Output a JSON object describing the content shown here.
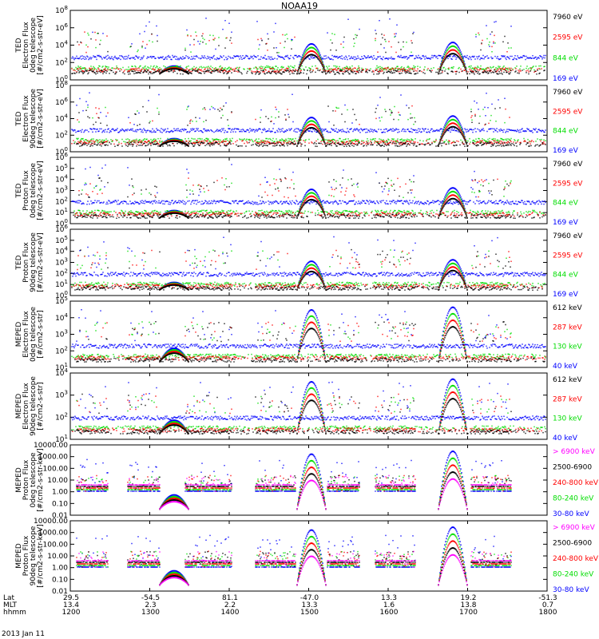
{
  "title": "NOAA19",
  "date_label": "2013 Jan 11",
  "colors": {
    "black": "#000000",
    "red": "#ff0000",
    "green": "#00dd00",
    "blue": "#0000ff",
    "magenta": "#ff00ff"
  },
  "footer": {
    "rows": [
      {
        "label": "Lat",
        "values": [
          "29.5",
          "-54.5",
          "81.1",
          "-47.0",
          "13.3",
          "19.2",
          "-51.3"
        ]
      },
      {
        "label": "MLT",
        "values": [
          "13.4",
          "2.3",
          "2.2",
          "13.3",
          "1.6",
          "13.8",
          "0.7"
        ]
      },
      {
        "label": "hhmm",
        "values": [
          "1200",
          "1300",
          "1400",
          "1500",
          "1600",
          "1700",
          "1800"
        ]
      }
    ]
  },
  "chart_data": [
    {
      "type": "line",
      "instrument": "TED",
      "ylabel": [
        "TED",
        "Electron Flux",
        "0deg telescope",
        "[#/cm2-s-str-eV]"
      ],
      "ylog": true,
      "yticks": [
        "10^0",
        "10^2",
        "10^4",
        "10^6",
        "10^8"
      ],
      "legend": [
        {
          "text": "7960 eV",
          "color": "black"
        },
        {
          "text": "2595 eV",
          "color": "red"
        },
        {
          "text": "844 eV",
          "color": "green"
        },
        {
          "text": "169 eV",
          "color": "blue"
        }
      ]
    },
    {
      "type": "line",
      "instrument": "TED",
      "ylabel": [
        "TED",
        "Electron Flux",
        "90deg telescope",
        "[#/cm2-s-str-eV]"
      ],
      "ylog": true,
      "yticks": [
        "10^0",
        "10^2",
        "10^4",
        "10^6",
        "10^8"
      ],
      "legend": [
        {
          "text": "7960 eV",
          "color": "black"
        },
        {
          "text": "2595 eV",
          "color": "red"
        },
        {
          "text": "844 eV",
          "color": "green"
        },
        {
          "text": "169 eV",
          "color": "blue"
        }
      ]
    },
    {
      "type": "line",
      "instrument": "TED",
      "ylabel": [
        "TED",
        "Proton Flux",
        "0deg telescope",
        "[#/cm2-s-str-eV]"
      ],
      "ylog": true,
      "yticks": [
        "10^0",
        "10^1",
        "10^2",
        "10^3",
        "10^4",
        "10^5",
        "10^6"
      ],
      "legend": [
        {
          "text": "7960 eV",
          "color": "black"
        },
        {
          "text": "2595 eV",
          "color": "red"
        },
        {
          "text": "844 eV",
          "color": "green"
        },
        {
          "text": "169 eV",
          "color": "blue"
        }
      ]
    },
    {
      "type": "line",
      "instrument": "TED",
      "ylabel": [
        "TED",
        "Proton Flux",
        "90deg telescope",
        "[#/cm2-s-str-eV]"
      ],
      "ylog": true,
      "yticks": [
        "10^0",
        "10^1",
        "10^2",
        "10^3",
        "10^4",
        "10^5",
        "10^6"
      ],
      "legend": [
        {
          "text": "7960 eV",
          "color": "black"
        },
        {
          "text": "2595 eV",
          "color": "red"
        },
        {
          "text": "844 eV",
          "color": "green"
        },
        {
          "text": "169 eV",
          "color": "blue"
        }
      ]
    },
    {
      "type": "line",
      "instrument": "MEPED",
      "ylabel": [
        "MEPED",
        "Electron Flux",
        "0deg telescope",
        "[#/cm2-s-str]"
      ],
      "ylog": true,
      "yticks": [
        "10^1",
        "10^2",
        "10^3",
        "10^4",
        "10^5"
      ],
      "legend": [
        {
          "text": "612 keV",
          "color": "black"
        },
        {
          "text": "287 keV",
          "color": "red"
        },
        {
          "text": "130 keV",
          "color": "green"
        },
        {
          "text": "40 keV",
          "color": "blue"
        }
      ]
    },
    {
      "type": "line",
      "instrument": "MEPED",
      "ylabel": [
        "MEPED",
        "Electron Flux",
        "90deg telescope",
        "[#/cm2-s-str]"
      ],
      "ylog": true,
      "yticks": [
        "10^1",
        "10^2",
        "10^3",
        "10^4"
      ],
      "legend": [
        {
          "text": "612 keV",
          "color": "black"
        },
        {
          "text": "287 keV",
          "color": "red"
        },
        {
          "text": "130 keV",
          "color": "green"
        },
        {
          "text": "40 keV",
          "color": "blue"
        }
      ]
    },
    {
      "type": "line",
      "instrument": "MEPED",
      "ylabel": [
        "MEPED",
        "Proton Flux",
        "0deg telescope",
        "[#/cm2-s-str-keV]"
      ],
      "ylog": true,
      "yticks": [
        "0.01",
        "0.10",
        "1.00",
        "10.00",
        "100.00",
        "1000.00",
        "10000.00"
      ],
      "legend": [
        {
          "text": "> 6900 keV",
          "color": "magenta"
        },
        {
          "text": "2500-6900",
          "color": "black"
        },
        {
          "text": "240-800 keV",
          "color": "red"
        },
        {
          "text": "80-240 keV",
          "color": "green"
        },
        {
          "text": "30-80 keV",
          "color": "blue"
        }
      ]
    },
    {
      "type": "line",
      "instrument": "MEPED",
      "ylabel": [
        "MEPED",
        "Proton Flux",
        "90deg telescope",
        "[#/cm2-s-str-keV]"
      ],
      "ylog": true,
      "yticks": [
        "0.01",
        "0.10",
        "1.00",
        "10.00",
        "100.00",
        "1000.00",
        "10000.00"
      ],
      "legend": [
        {
          "text": "> 6900 keV",
          "color": "magenta"
        },
        {
          "text": "2500-6900",
          "color": "black"
        },
        {
          "text": "240-800 keV",
          "color": "red"
        },
        {
          "text": "80-240 keV",
          "color": "green"
        },
        {
          "text": "30-80 keV",
          "color": "blue"
        }
      ]
    }
  ]
}
